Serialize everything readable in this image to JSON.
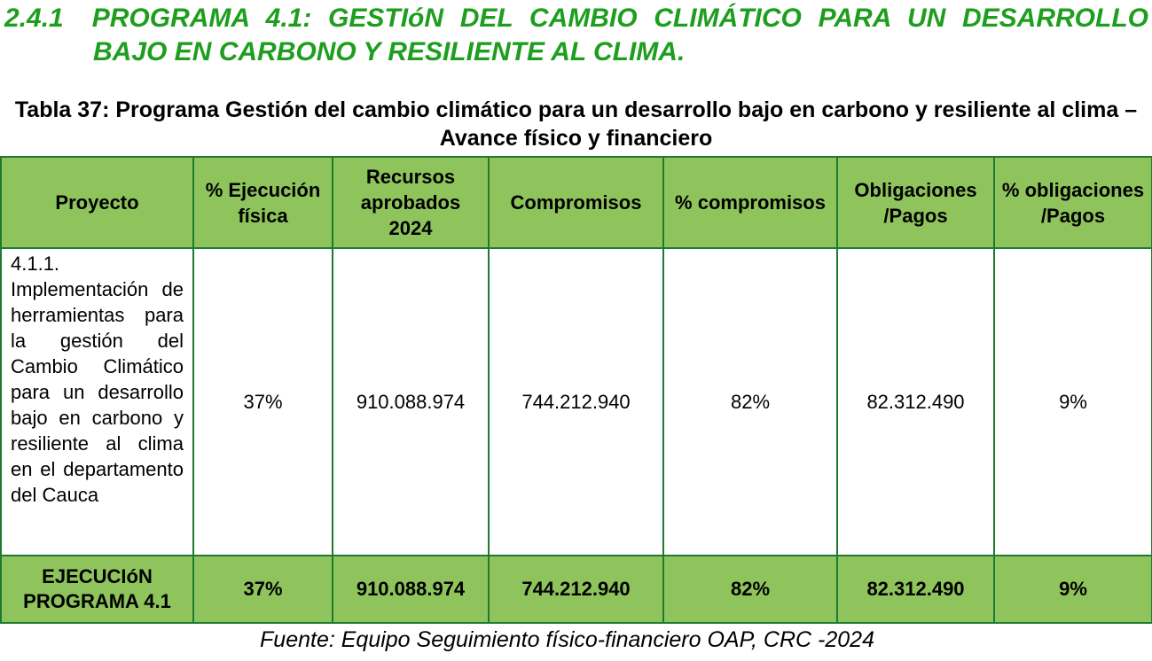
{
  "heading": {
    "number": "2.4.1",
    "title": "PROGRAMA 4.1: GESTIóN DEL CAMBIO CLIMÁTICO PARA UN DESARROLLO BAJO EN CARBONO Y RESILIENTE AL CLIMA."
  },
  "caption": "Tabla 37: Programa Gestión del cambio climático para un desarrollo bajo en carbono y resiliente al clima – Avance físico y financiero",
  "table": {
    "header": [
      "Proyecto",
      "% Ejecución física",
      "Recursos aprobados 2024",
      "Compromisos",
      "% compromisos",
      "Obligaciones /Pagos",
      "% obligaciones /Pagos"
    ],
    "rows": [
      [
        "4.1.1. Implementación de herramientas para la gestión del Cambio Climático para un desarrollo bajo en carbono y resiliente al clima en el departamento del Cauca",
        "37%",
        "910.088.974",
        "744.212.940",
        "82%",
        "82.312.490",
        "9%"
      ],
      [
        "EJECUCIóN PROGRAMA 4.1",
        "37%",
        "910.088.974",
        "744.212.940",
        "82%",
        "82.312.490",
        "9%"
      ]
    ]
  },
  "source": "Fuente: Equipo Seguimiento físico-financiero OAP, CRC -2024"
}
